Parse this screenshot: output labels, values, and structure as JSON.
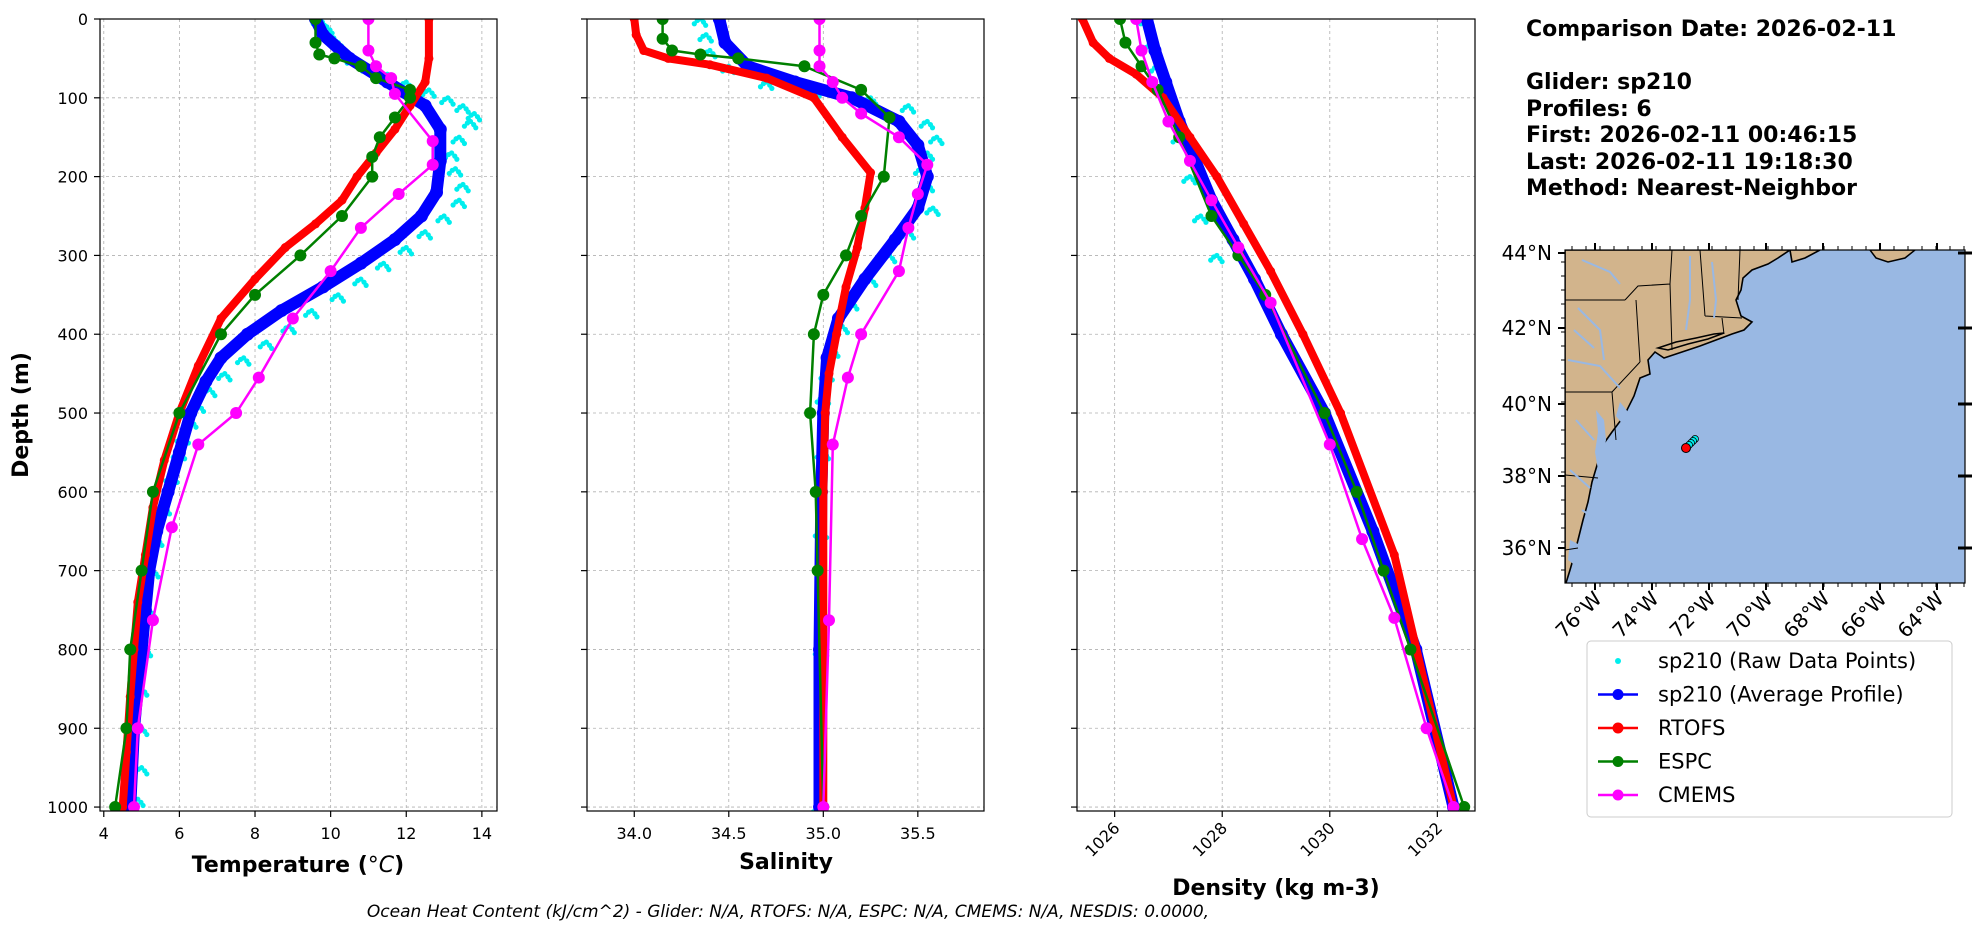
{
  "chart_data": [
    {
      "type": "line",
      "xlabel": "Temperature (°C)",
      "ylabel": "Depth (m)",
      "xlim": [
        3.9,
        14.4
      ],
      "ylim": [
        1005,
        0
      ],
      "xticks": [
        4,
        6,
        8,
        10,
        12,
        14
      ],
      "yticks": [
        0,
        100,
        200,
        300,
        400,
        500,
        600,
        700,
        800,
        900,
        1000
      ],
      "grid": true,
      "raw_points": [
        [
          9.7,
          0
        ],
        [
          9.9,
          10
        ],
        [
          10.0,
          20
        ],
        [
          10.2,
          30
        ],
        [
          10.4,
          40
        ],
        [
          10.6,
          50
        ],
        [
          11.0,
          60
        ],
        [
          11.5,
          70
        ],
        [
          12.0,
          80
        ],
        [
          12.6,
          90
        ],
        [
          13.1,
          100
        ],
        [
          13.5,
          110
        ],
        [
          13.8,
          120
        ],
        [
          13.7,
          130
        ],
        [
          13.4,
          150
        ],
        [
          13.2,
          170
        ],
        [
          13.3,
          190
        ],
        [
          13.5,
          210
        ],
        [
          13.4,
          230
        ],
        [
          13.0,
          250
        ],
        [
          12.5,
          270
        ],
        [
          12.0,
          290
        ],
        [
          11.4,
          310
        ],
        [
          10.8,
          330
        ],
        [
          10.2,
          350
        ],
        [
          9.5,
          370
        ],
        [
          8.9,
          390
        ],
        [
          8.3,
          410
        ],
        [
          7.7,
          430
        ],
        [
          7.2,
          450
        ],
        [
          6.8,
          470
        ],
        [
          6.5,
          490
        ],
        [
          6.3,
          510
        ],
        [
          6.1,
          530
        ],
        [
          6.0,
          550
        ],
        [
          5.8,
          580
        ],
        [
          5.6,
          620
        ],
        [
          5.4,
          660
        ],
        [
          5.3,
          700
        ],
        [
          5.2,
          750
        ],
        [
          5.1,
          800
        ],
        [
          5.0,
          850
        ],
        [
          5.0,
          900
        ],
        [
          5.0,
          950
        ],
        [
          4.9,
          990
        ]
      ],
      "series": [
        {
          "name": "sp210 (Average Profile)",
          "x": [
            9.6,
            9.8,
            10.5,
            11.5,
            12.5,
            12.9,
            12.9,
            12.8,
            12.4,
            11.7,
            10.8,
            9.8,
            8.7,
            7.8,
            7.1,
            6.7,
            6.3,
            6.0,
            5.7,
            5.4,
            5.2,
            5.1,
            5.0,
            4.9,
            4.8,
            4.7
          ],
          "y": [
            0,
            20,
            50,
            80,
            110,
            140,
            180,
            220,
            250,
            280,
            310,
            340,
            370,
            400,
            430,
            460,
            500,
            550,
            600,
            650,
            700,
            750,
            800,
            850,
            900,
            1000
          ]
        },
        {
          "name": "RTOFS",
          "x": [
            12.6,
            12.6,
            12.5,
            12.1,
            11.7,
            11.2,
            10.7,
            10.3,
            9.6,
            8.8,
            8.0,
            7.1,
            6.5,
            6.0,
            5.6,
            5.3,
            5.1,
            4.9,
            4.8,
            4.7,
            4.6,
            4.5
          ],
          "y": [
            0,
            50,
            80,
            110,
            140,
            170,
            200,
            230,
            260,
            290,
            330,
            380,
            440,
            500,
            560,
            620,
            680,
            740,
            800,
            860,
            930,
            1000
          ]
        },
        {
          "name": "ESPC",
          "x": [
            9.6,
            9.6,
            9.7,
            10.1,
            10.8,
            11.2,
            12.1,
            12.1,
            11.7,
            11.3,
            11.1,
            11.1,
            10.3,
            9.2,
            8.0,
            7.1,
            6.0,
            5.3,
            5.0,
            4.7,
            4.6,
            4.3
          ],
          "y": [
            0,
            30,
            45,
            50,
            60,
            75,
            90,
            100,
            125,
            150,
            175,
            200,
            250,
            300,
            350,
            400,
            500,
            600,
            700,
            800,
            900,
            1000
          ]
        },
        {
          "name": "CMEMS",
          "x": [
            11.0,
            11.0,
            11.2,
            11.6,
            11.7,
            12.7,
            12.7,
            11.8,
            10.8,
            10.0,
            9.0,
            8.1,
            7.5,
            6.5,
            5.8,
            5.3,
            4.9,
            4.8
          ],
          "y": [
            0,
            40,
            60,
            75,
            95,
            155,
            185,
            222,
            265,
            320,
            380,
            455,
            500,
            540,
            645,
            763,
            900,
            1000
          ]
        }
      ]
    },
    {
      "type": "line",
      "xlabel": "Salinity",
      "xlim": [
        33.75,
        35.85
      ],
      "ylim": [
        1005,
        0
      ],
      "xticks": [
        34.0,
        34.5,
        35.0,
        35.5
      ],
      "grid": true,
      "raw_points": [
        [
          34.35,
          0
        ],
        [
          34.38,
          20
        ],
        [
          34.4,
          40
        ],
        [
          34.5,
          60
        ],
        [
          34.7,
          80
        ],
        [
          34.95,
          90
        ],
        [
          35.25,
          100
        ],
        [
          35.45,
          110
        ],
        [
          35.55,
          130
        ],
        [
          35.6,
          150
        ],
        [
          35.55,
          170
        ],
        [
          35.52,
          190
        ],
        [
          35.55,
          210
        ],
        [
          35.58,
          240
        ],
        [
          35.45,
          270
        ],
        [
          35.35,
          300
        ],
        [
          35.25,
          330
        ],
        [
          35.15,
          360
        ],
        [
          35.1,
          390
        ],
        [
          35.05,
          420
        ],
        [
          35.02,
          450
        ],
        [
          35.0,
          480
        ],
        [
          35.0,
          550
        ],
        [
          34.99,
          650
        ],
        [
          34.99,
          800
        ],
        [
          34.98,
          1000
        ]
      ],
      "series": [
        {
          "name": "sp210 (Average Profile)",
          "x": [
            34.45,
            34.48,
            34.6,
            34.85,
            35.15,
            35.4,
            35.5,
            35.55,
            35.5,
            35.38,
            35.22,
            35.08,
            35.02,
            35.0,
            34.99,
            34.98,
            34.98
          ],
          "y": [
            0,
            30,
            60,
            80,
            100,
            130,
            160,
            200,
            240,
            280,
            330,
            380,
            430,
            500,
            600,
            800,
            1000
          ]
        },
        {
          "name": "RTOFS",
          "x": [
            34.0,
            34.01,
            34.05,
            34.18,
            34.4,
            34.7,
            34.95,
            35.1,
            35.25,
            35.22,
            35.18,
            35.12,
            35.07,
            35.03,
            35.01,
            35.0,
            35.0
          ],
          "y": [
            0,
            20,
            40,
            50,
            58,
            75,
            100,
            150,
            195,
            240,
            290,
            340,
            400,
            450,
            500,
            600,
            1000
          ]
        },
        {
          "name": "ESPC",
          "x": [
            34.15,
            34.15,
            34.2,
            34.35,
            34.55,
            34.9,
            35.2,
            35.35,
            35.32,
            35.2,
            35.12,
            35.0,
            34.95,
            34.93,
            34.96,
            34.97,
            35.0
          ],
          "y": [
            0,
            25,
            40,
            45,
            50,
            60,
            90,
            125,
            200,
            250,
            300,
            350,
            400,
            500,
            600,
            700,
            1000
          ]
        },
        {
          "name": "CMEMS",
          "x": [
            34.98,
            34.98,
            34.98,
            35.05,
            35.1,
            35.2,
            35.4,
            35.55,
            35.5,
            35.45,
            35.4,
            35.2,
            35.13,
            35.05,
            35.03,
            35.0
          ],
          "y": [
            0,
            40,
            60,
            80,
            100,
            120,
            150,
            185,
            222,
            265,
            320,
            400,
            455,
            540,
            763,
            1000
          ]
        }
      ]
    },
    {
      "type": "line",
      "xlabel": "Density (kg m-3)",
      "xlim": [
        1025.3,
        1032.7
      ],
      "ylim": [
        1005,
        0
      ],
      "xticks": [
        1026,
        1028,
        1030,
        1032
      ],
      "grid": true,
      "raw_points": [
        [
          1026.6,
          0
        ],
        [
          1026.7,
          30
        ],
        [
          1026.8,
          60
        ],
        [
          1027.0,
          100
        ],
        [
          1027.2,
          150
        ],
        [
          1027.4,
          200
        ],
        [
          1027.6,
          250
        ],
        [
          1027.9,
          300
        ]
      ],
      "series": [
        {
          "name": "sp210 (Average Profile)",
          "x": [
            1026.6,
            1026.75,
            1026.95,
            1027.2,
            1027.5,
            1027.8,
            1028.2,
            1028.6,
            1029.1,
            1029.9,
            1030.8,
            1031.6,
            1032.3
          ],
          "y": [
            0,
            40,
            80,
            130,
            180,
            230,
            280,
            330,
            400,
            500,
            650,
            800,
            1000
          ]
        },
        {
          "name": "RTOFS",
          "x": [
            1025.4,
            1025.6,
            1025.9,
            1026.4,
            1026.9,
            1027.4,
            1027.9,
            1028.4,
            1028.9,
            1029.5,
            1030.2,
            1031.2,
            1032.3
          ],
          "y": [
            0,
            30,
            50,
            70,
            100,
            150,
            200,
            260,
            320,
            400,
            500,
            680,
            1000
          ]
        },
        {
          "name": "ESPC",
          "x": [
            1026.1,
            1026.2,
            1026.5,
            1026.8,
            1027.2,
            1027.8,
            1028.3,
            1028.8,
            1029.9,
            1030.5,
            1031.0,
            1031.5,
            1032.5
          ],
          "y": [
            0,
            30,
            60,
            90,
            150,
            250,
            300,
            350,
            500,
            600,
            700,
            800,
            1000
          ]
        },
        {
          "name": "CMEMS",
          "x": [
            1026.4,
            1026.5,
            1026.7,
            1027.0,
            1027.4,
            1027.8,
            1028.3,
            1028.9,
            1030.0,
            1030.6,
            1031.2,
            1031.8,
            1032.3
          ],
          "y": [
            0,
            40,
            80,
            130,
            180,
            230,
            290,
            360,
            540,
            660,
            760,
            900,
            1000
          ]
        }
      ]
    }
  ],
  "legend": [
    {
      "label": "sp210 (Raw Data Points)",
      "style": "dots"
    },
    {
      "label": "sp210 (Average Profile)",
      "style": "line"
    },
    {
      "label": "RTOFS",
      "style": "line"
    },
    {
      "label": "ESPC",
      "style": "line"
    },
    {
      "label": "CMEMS",
      "style": "line"
    }
  ],
  "colors": {
    "raw": "#00eeee",
    "sp210": "#0000ff",
    "RTOFS": "#ff0000",
    "ESPC": "#008000",
    "CMEMS": "#ff00ff",
    "land": "#d2b48c",
    "ocean": "#99b8e3"
  },
  "info": {
    "comparison_date": "Comparison Date: 2026-02-11",
    "glider": "Glider: sp210",
    "profiles": "Profiles: 6",
    "first": "First: 2026-02-11 00:46:15",
    "last": "Last: 2026-02-11 19:18:30",
    "method": "Method: Nearest-Neighbor"
  },
  "map": {
    "lat_ticks": [
      "44°N",
      "42°N",
      "40°N",
      "38°N",
      "36°N"
    ],
    "lon_ticks": [
      "76°W",
      "74°W",
      "72°W",
      "70°W",
      "68°W",
      "66°W",
      "64°W"
    ],
    "glider_position": "38.8°N 71.2°W"
  },
  "footer": "Ocean Heat Content (kJ/cm^2) - Glider: N/A,  RTOFS: N/A,  ESPC: N/A,  CMEMS: N/A,  NESDIS: 0.0000,"
}
